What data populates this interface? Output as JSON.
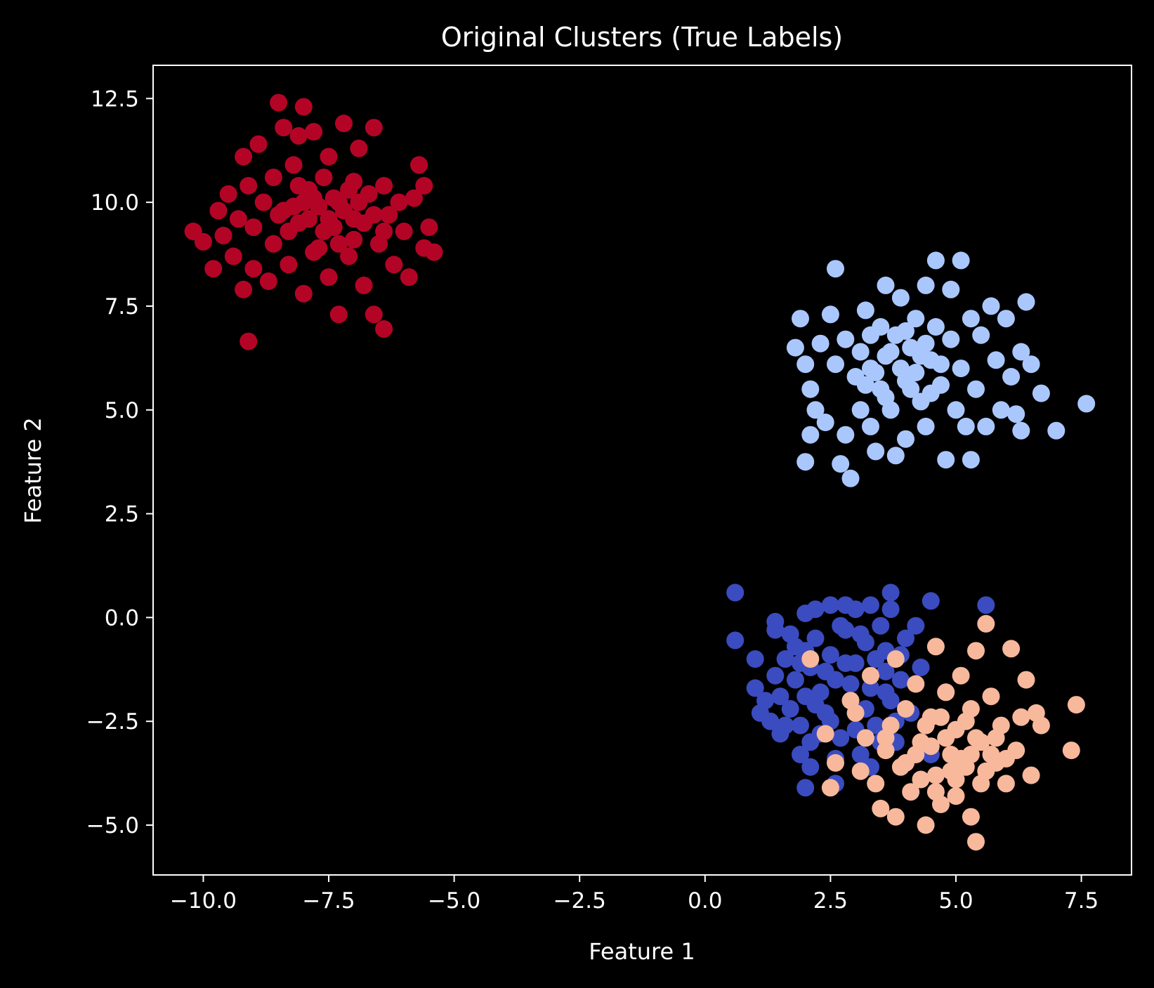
{
  "chart_data": {
    "type": "scatter",
    "title": "Original Clusters (True Labels)",
    "xlabel": "Feature 1",
    "ylabel": "Feature 2",
    "xlim": [
      -11.0,
      8.5
    ],
    "ylim": [
      -6.2,
      13.3
    ],
    "xticks": [
      -10.0,
      -7.5,
      -5.0,
      -2.5,
      0.0,
      2.5,
      5.0,
      7.5
    ],
    "xtick_labels": [
      "−10.0",
      "−7.5",
      "−5.0",
      "−2.5",
      "0.0",
      "2.5",
      "5.0",
      "7.5"
    ],
    "yticks": [
      -5.0,
      -2.5,
      0.0,
      2.5,
      5.0,
      7.5,
      10.0,
      12.5
    ],
    "ytick_labels": [
      "−5.0",
      "−2.5",
      "0.0",
      "2.5",
      "5.0",
      "7.5",
      "10.0",
      "12.5"
    ],
    "grid": false,
    "background": "#000000",
    "colormap": "coolwarm",
    "series": [
      {
        "color": "#3b4cc0",
        "points": [
          [
            0.6,
            0.6
          ],
          [
            0.6,
            -0.55
          ],
          [
            1.0,
            -1.0
          ],
          [
            1.0,
            -1.7
          ],
          [
            1.2,
            -2.0
          ],
          [
            1.3,
            -2.5
          ],
          [
            1.4,
            -1.4
          ],
          [
            1.4,
            -0.3
          ],
          [
            1.4,
            -0.1
          ],
          [
            1.5,
            -2.8
          ],
          [
            1.6,
            -1.0
          ],
          [
            1.7,
            -2.2
          ],
          [
            1.8,
            -1.5
          ],
          [
            1.8,
            -0.7
          ],
          [
            1.9,
            -2.6
          ],
          [
            1.9,
            -3.3
          ],
          [
            2.0,
            -4.1
          ],
          [
            2.0,
            0.1
          ],
          [
            2.1,
            -1.2
          ],
          [
            2.1,
            -3.6
          ],
          [
            2.2,
            -0.5
          ],
          [
            2.2,
            0.2
          ],
          [
            2.3,
            -1.8
          ],
          [
            2.4,
            -2.3
          ],
          [
            2.5,
            0.3
          ],
          [
            2.5,
            -0.9
          ],
          [
            2.6,
            -4.0
          ],
          [
            2.6,
            -1.5
          ],
          [
            2.7,
            -2.9
          ],
          [
            2.8,
            0.3
          ],
          [
            2.8,
            -0.3
          ],
          [
            2.9,
            -2.0
          ],
          [
            3.0,
            -1.1
          ],
          [
            3.0,
            0.2
          ],
          [
            3.1,
            -3.3
          ],
          [
            3.2,
            -0.6
          ],
          [
            3.3,
            -1.7
          ],
          [
            3.3,
            0.3
          ],
          [
            3.4,
            -2.6
          ],
          [
            3.5,
            -0.2
          ],
          [
            3.6,
            -1.3
          ],
          [
            3.6,
            -0.8
          ],
          [
            3.7,
            -2.0
          ],
          [
            3.7,
            0.6
          ],
          [
            3.7,
            0.2
          ],
          [
            3.8,
            -3.0
          ],
          [
            3.9,
            -1.5
          ],
          [
            4.0,
            -0.5
          ],
          [
            4.1,
            -2.3
          ],
          [
            4.2,
            -0.2
          ],
          [
            4.3,
            -1.2
          ],
          [
            4.5,
            -3.3
          ],
          [
            4.5,
            0.4
          ],
          [
            4.8,
            -1.8
          ],
          [
            5.6,
            0.3
          ],
          [
            1.9,
            -1.1
          ],
          [
            2.3,
            -2.8
          ],
          [
            2.7,
            -0.2
          ],
          [
            3.2,
            -2.2
          ],
          [
            3.5,
            -3.0
          ],
          [
            3.9,
            -0.9
          ],
          [
            1.5,
            -1.9
          ],
          [
            2.0,
            -0.8
          ],
          [
            2.4,
            -1.3
          ],
          [
            2.9,
            -1.6
          ],
          [
            3.4,
            -1.0
          ],
          [
            3.8,
            -2.5
          ],
          [
            1.7,
            -0.4
          ],
          [
            2.2,
            -2.1
          ],
          [
            2.6,
            -3.4
          ],
          [
            3.1,
            -0.4
          ],
          [
            3.6,
            -1.8
          ],
          [
            1.1,
            -2.3
          ],
          [
            2.0,
            -1.9
          ],
          [
            2.5,
            -2.5
          ],
          [
            3.0,
            -2.7
          ],
          [
            3.3,
            -3.6
          ],
          [
            2.8,
            -1.1
          ],
          [
            2.1,
            -3.0
          ],
          [
            1.6,
            -2.6
          ]
        ]
      },
      {
        "color": "#aac7fd",
        "points": [
          [
            1.8,
            6.5
          ],
          [
            1.9,
            7.2
          ],
          [
            2.0,
            6.1
          ],
          [
            2.1,
            5.5
          ],
          [
            2.1,
            4.4
          ],
          [
            2.0,
            3.75
          ],
          [
            2.2,
            5.0
          ],
          [
            2.3,
            6.6
          ],
          [
            2.4,
            4.7
          ],
          [
            2.5,
            7.3
          ],
          [
            2.6,
            8.4
          ],
          [
            2.6,
            6.1
          ],
          [
            2.7,
            3.7
          ],
          [
            2.8,
            6.7
          ],
          [
            2.8,
            4.4
          ],
          [
            2.9,
            3.35
          ],
          [
            3.0,
            5.8
          ],
          [
            3.1,
            6.4
          ],
          [
            3.1,
            5.0
          ],
          [
            3.2,
            7.4
          ],
          [
            3.3,
            4.6
          ],
          [
            3.3,
            6.0
          ],
          [
            3.4,
            4.0
          ],
          [
            3.5,
            5.5
          ],
          [
            3.5,
            7.0
          ],
          [
            3.6,
            8.0
          ],
          [
            3.6,
            6.3
          ],
          [
            3.7,
            5.0
          ],
          [
            3.8,
            3.9
          ],
          [
            3.8,
            6.8
          ],
          [
            3.9,
            7.7
          ],
          [
            4.0,
            5.7
          ],
          [
            4.0,
            4.3
          ],
          [
            4.1,
            6.5
          ],
          [
            4.2,
            7.2
          ],
          [
            4.3,
            5.2
          ],
          [
            4.4,
            8.0
          ],
          [
            4.4,
            4.6
          ],
          [
            4.5,
            6.2
          ],
          [
            4.6,
            8.6
          ],
          [
            4.6,
            7.0
          ],
          [
            4.7,
            5.6
          ],
          [
            4.8,
            3.8
          ],
          [
            4.9,
            6.7
          ],
          [
            4.9,
            7.9
          ],
          [
            5.0,
            5.0
          ],
          [
            5.1,
            8.6
          ],
          [
            5.1,
            6.0
          ],
          [
            5.2,
            4.6
          ],
          [
            5.3,
            3.8
          ],
          [
            5.3,
            7.2
          ],
          [
            5.4,
            5.5
          ],
          [
            5.5,
            6.8
          ],
          [
            5.6,
            4.6
          ],
          [
            5.7,
            7.5
          ],
          [
            5.8,
            6.2
          ],
          [
            5.9,
            5.0
          ],
          [
            6.0,
            7.2
          ],
          [
            6.1,
            5.8
          ],
          [
            6.2,
            4.9
          ],
          [
            6.3,
            6.4
          ],
          [
            6.3,
            4.5
          ],
          [
            6.4,
            7.6
          ],
          [
            6.5,
            6.1
          ],
          [
            6.7,
            5.4
          ],
          [
            7.0,
            4.5
          ],
          [
            7.6,
            5.15
          ],
          [
            3.4,
            5.9
          ],
          [
            3.9,
            6.0
          ],
          [
            4.2,
            5.9
          ],
          [
            4.5,
            5.4
          ],
          [
            3.7,
            6.4
          ],
          [
            4.0,
            6.9
          ],
          [
            4.4,
            6.6
          ],
          [
            3.2,
            5.6
          ],
          [
            4.7,
            6.1
          ],
          [
            3.6,
            5.3
          ],
          [
            4.3,
            6.3
          ],
          [
            3.3,
            6.8
          ],
          [
            4.1,
            5.5
          ]
        ]
      },
      {
        "color": "#f7b89c",
        "points": [
          [
            2.1,
            -1.0
          ],
          [
            2.4,
            -2.8
          ],
          [
            2.5,
            -4.1
          ],
          [
            2.6,
            -3.5
          ],
          [
            2.9,
            -2.0
          ],
          [
            3.0,
            -2.3
          ],
          [
            3.1,
            -3.7
          ],
          [
            3.2,
            -2.9
          ],
          [
            3.3,
            -1.4
          ],
          [
            3.4,
            -4.0
          ],
          [
            3.5,
            -4.6
          ],
          [
            3.6,
            -3.2
          ],
          [
            3.7,
            -2.6
          ],
          [
            3.8,
            -1.0
          ],
          [
            3.8,
            -4.8
          ],
          [
            3.9,
            -3.6
          ],
          [
            4.0,
            -2.2
          ],
          [
            4.1,
            -4.2
          ],
          [
            4.2,
            -1.6
          ],
          [
            4.3,
            -3.0
          ],
          [
            4.4,
            -5.0
          ],
          [
            4.5,
            -2.4
          ],
          [
            4.6,
            -0.7
          ],
          [
            4.6,
            -3.8
          ],
          [
            4.7,
            -4.5
          ],
          [
            4.8,
            -1.8
          ],
          [
            4.9,
            -3.3
          ],
          [
            5.0,
            -2.7
          ],
          [
            5.0,
            -4.3
          ],
          [
            5.1,
            -1.4
          ],
          [
            5.2,
            -3.6
          ],
          [
            5.3,
            -2.2
          ],
          [
            5.3,
            -4.8
          ],
          [
            5.4,
            -0.8
          ],
          [
            5.4,
            -5.4
          ],
          [
            5.5,
            -3.0
          ],
          [
            5.5,
            -4.0
          ],
          [
            5.6,
            -0.15
          ],
          [
            5.7,
            -1.9
          ],
          [
            5.8,
            -3.5
          ],
          [
            5.9,
            -2.6
          ],
          [
            6.0,
            -4.0
          ],
          [
            6.1,
            -0.75
          ],
          [
            6.2,
            -3.2
          ],
          [
            6.3,
            -2.4
          ],
          [
            6.4,
            -1.5
          ],
          [
            6.5,
            -3.8
          ],
          [
            6.6,
            -2.3
          ],
          [
            6.7,
            -2.6
          ],
          [
            7.3,
            -3.2
          ],
          [
            7.4,
            -2.1
          ],
          [
            4.2,
            -3.3
          ],
          [
            4.5,
            -3.1
          ],
          [
            4.8,
            -2.9
          ],
          [
            5.1,
            -3.4
          ],
          [
            5.4,
            -2.9
          ],
          [
            5.7,
            -3.3
          ],
          [
            4.4,
            -2.6
          ],
          [
            4.9,
            -3.7
          ],
          [
            5.2,
            -2.5
          ],
          [
            5.6,
            -3.7
          ],
          [
            4.7,
            -2.4
          ],
          [
            5.0,
            -3.9
          ],
          [
            5.8,
            -2.9
          ],
          [
            4.3,
            -3.9
          ],
          [
            5.3,
            -3.3
          ],
          [
            6.0,
            -3.4
          ],
          [
            4.0,
            -3.5
          ],
          [
            3.6,
            -2.9
          ],
          [
            4.6,
            -4.2
          ]
        ]
      },
      {
        "color": "#b40426",
        "points": [
          [
            -10.2,
            9.3
          ],
          [
            -10.0,
            9.05
          ],
          [
            -9.8,
            8.4
          ],
          [
            -9.7,
            9.8
          ],
          [
            -9.6,
            9.2
          ],
          [
            -9.5,
            10.2
          ],
          [
            -9.4,
            8.7
          ],
          [
            -9.3,
            9.6
          ],
          [
            -9.2,
            7.9
          ],
          [
            -9.2,
            11.1
          ],
          [
            -9.1,
            10.4
          ],
          [
            -9.1,
            6.65
          ],
          [
            -9.0,
            8.4
          ],
          [
            -9.0,
            9.4
          ],
          [
            -8.9,
            11.4
          ],
          [
            -8.8,
            10.0
          ],
          [
            -8.7,
            8.1
          ],
          [
            -8.6,
            10.6
          ],
          [
            -8.6,
            9.0
          ],
          [
            -8.5,
            12.4
          ],
          [
            -8.4,
            11.8
          ],
          [
            -8.4,
            9.8
          ],
          [
            -8.3,
            8.5
          ],
          [
            -8.2,
            10.9
          ],
          [
            -8.1,
            9.5
          ],
          [
            -8.1,
            11.6
          ],
          [
            -8.0,
            7.8
          ],
          [
            -8.0,
            12.3
          ],
          [
            -7.9,
            10.3
          ],
          [
            -7.8,
            8.8
          ],
          [
            -7.8,
            11.7
          ],
          [
            -7.7,
            9.9
          ],
          [
            -7.6,
            10.6
          ],
          [
            -7.5,
            8.2
          ],
          [
            -7.5,
            11.1
          ],
          [
            -7.4,
            9.4
          ],
          [
            -7.3,
            7.3
          ],
          [
            -7.3,
            10.0
          ],
          [
            -7.2,
            11.9
          ],
          [
            -7.1,
            8.7
          ],
          [
            -7.0,
            10.5
          ],
          [
            -7.0,
            9.6
          ],
          [
            -6.9,
            11.3
          ],
          [
            -6.8,
            8.0
          ],
          [
            -6.7,
            10.2
          ],
          [
            -6.6,
            7.3
          ],
          [
            -6.6,
            11.8
          ],
          [
            -6.5,
            9.0
          ],
          [
            -6.4,
            10.4
          ],
          [
            -6.4,
            6.95
          ],
          [
            -6.3,
            9.7
          ],
          [
            -6.2,
            8.5
          ],
          [
            -6.1,
            10.0
          ],
          [
            -6.0,
            9.3
          ],
          [
            -5.9,
            8.2
          ],
          [
            -5.8,
            10.1
          ],
          [
            -5.7,
            10.9
          ],
          [
            -5.6,
            8.9
          ],
          [
            -5.6,
            10.4
          ],
          [
            -5.4,
            8.8
          ],
          [
            -5.5,
            9.4
          ],
          [
            -7.9,
            9.6
          ],
          [
            -7.6,
            9.3
          ],
          [
            -7.2,
            9.8
          ],
          [
            -8.0,
            10.0
          ],
          [
            -7.4,
            10.1
          ],
          [
            -7.0,
            9.1
          ],
          [
            -8.3,
            9.3
          ],
          [
            -6.8,
            9.5
          ],
          [
            -7.7,
            8.9
          ],
          [
            -8.1,
            10.4
          ],
          [
            -7.3,
            9.0
          ],
          [
            -6.9,
            10.0
          ],
          [
            -7.8,
            10.1
          ],
          [
            -8.5,
            9.7
          ],
          [
            -6.6,
            9.7
          ],
          [
            -7.1,
            10.3
          ],
          [
            -7.5,
            9.6
          ],
          [
            -8.2,
            9.9
          ],
          [
            -6.4,
            9.3
          ]
        ]
      }
    ]
  }
}
